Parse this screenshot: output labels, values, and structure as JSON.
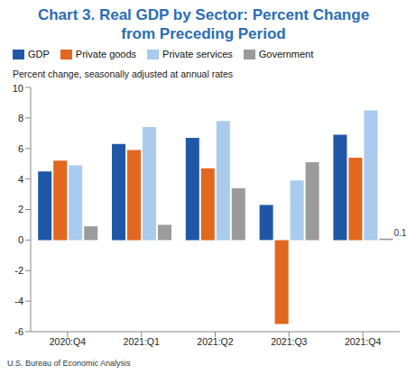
{
  "chart_data": {
    "type": "bar",
    "title": "Chart 3. Real GDP by Sector: Percent Change from Preceding Period",
    "y_label": "Percent change, seasonally adjusted at annual rates",
    "source": "U.S. Bureau of Economic Analysis",
    "categories": [
      "2020:Q4",
      "2021:Q1",
      "2021:Q2",
      "2021:Q3",
      "2021:Q4"
    ],
    "series": [
      {
        "name": "GDP",
        "color": "#1f57a6",
        "values": [
          4.5,
          6.3,
          6.7,
          2.3,
          6.9
        ]
      },
      {
        "name": "Private goods",
        "color": "#e2671f",
        "values": [
          5.2,
          5.9,
          4.7,
          -5.5,
          5.4
        ]
      },
      {
        "name": "Private services",
        "color": "#a9cbee",
        "values": [
          4.9,
          7.4,
          7.8,
          3.9,
          8.5
        ]
      },
      {
        "name": "Government",
        "color": "#9b9b9b",
        "values": [
          0.9,
          1.0,
          3.4,
          5.1,
          0.1
        ]
      }
    ],
    "annotations": [
      {
        "text": "0.1",
        "category": "2021:Q4",
        "series": "Government"
      }
    ],
    "ylim": [
      -6,
      10
    ],
    "yticks": [
      -6,
      -4,
      -2,
      0,
      2,
      4,
      6,
      8,
      10
    ],
    "grid": false,
    "legend": "top"
  }
}
